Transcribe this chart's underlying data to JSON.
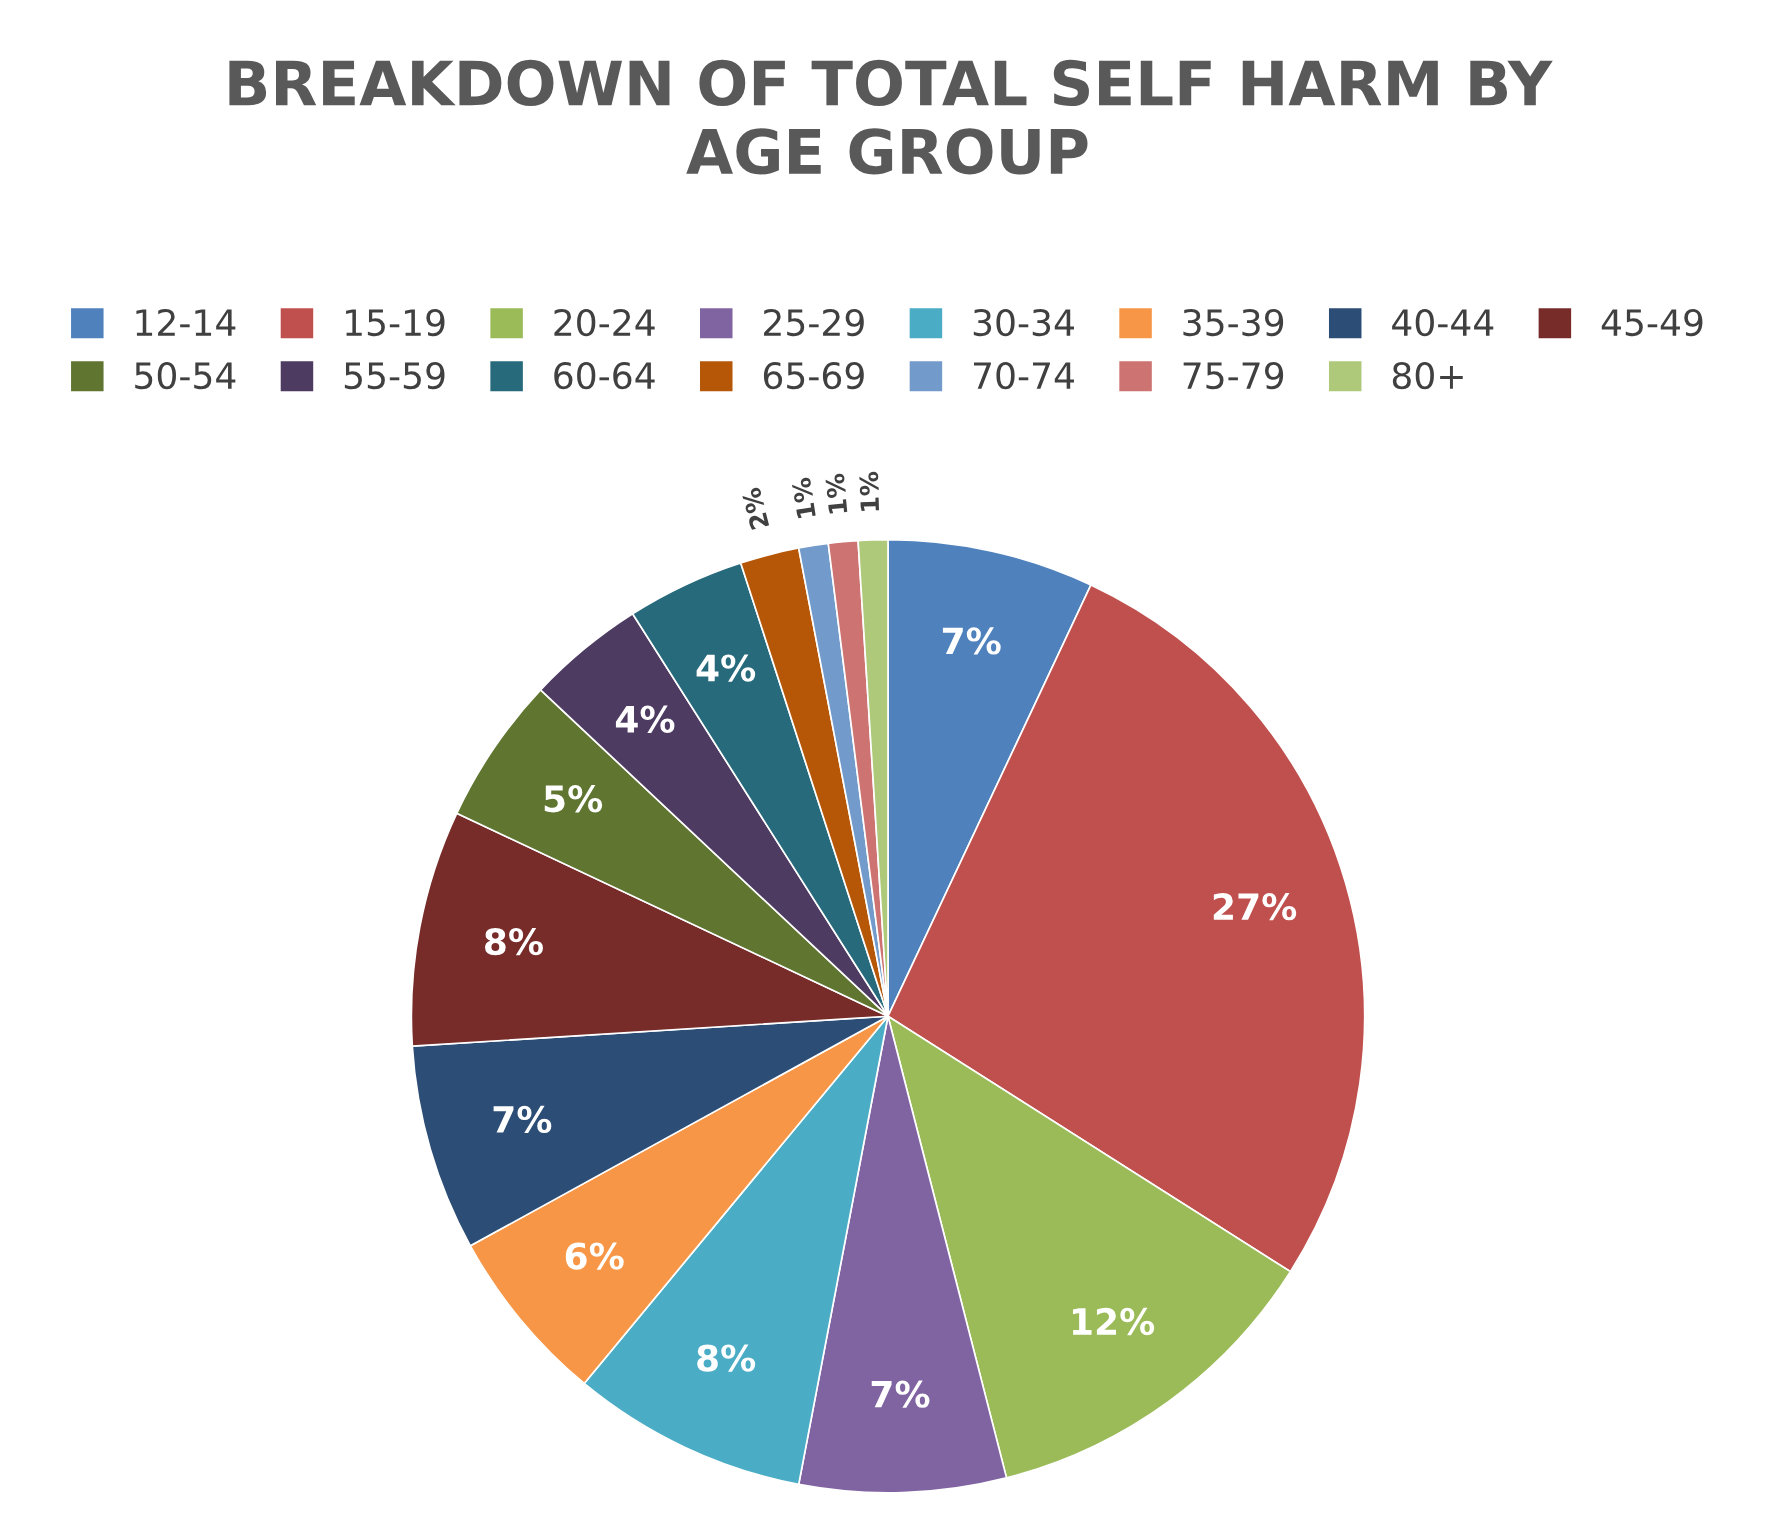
{
  "chart_data": {
    "type": "pie",
    "title": "BREAKDOWN OF TOTAL SELF HARM BY AGE GROUP",
    "categories": [
      "12-14",
      "15-19",
      "20-24",
      "25-29",
      "30-34",
      "35-39",
      "40-44",
      "45-49",
      "50-54",
      "55-59",
      "60-64",
      "65-69",
      "70-74",
      "75-79",
      "80+"
    ],
    "values": [
      7,
      27,
      12,
      7,
      8,
      6,
      7,
      8,
      5,
      4,
      4,
      2,
      1,
      1,
      1
    ],
    "value_labels": [
      "7%",
      "27%",
      "12%",
      "7%",
      "8%",
      "6%",
      "7%",
      "8%",
      "5%",
      "4%",
      "4%",
      "2%",
      "1%",
      "1%",
      "1%"
    ],
    "colors": [
      "#4f81bd",
      "#c0504d",
      "#9bbb59",
      "#8064a2",
      "#4bacc6",
      "#f79646",
      "#2c4d75",
      "#772c2a",
      "#5f7530",
      "#4d3b62",
      "#276a7c",
      "#b65708",
      "#729aca",
      "#cd7371",
      "#afc97a"
    ],
    "legend": "top"
  }
}
